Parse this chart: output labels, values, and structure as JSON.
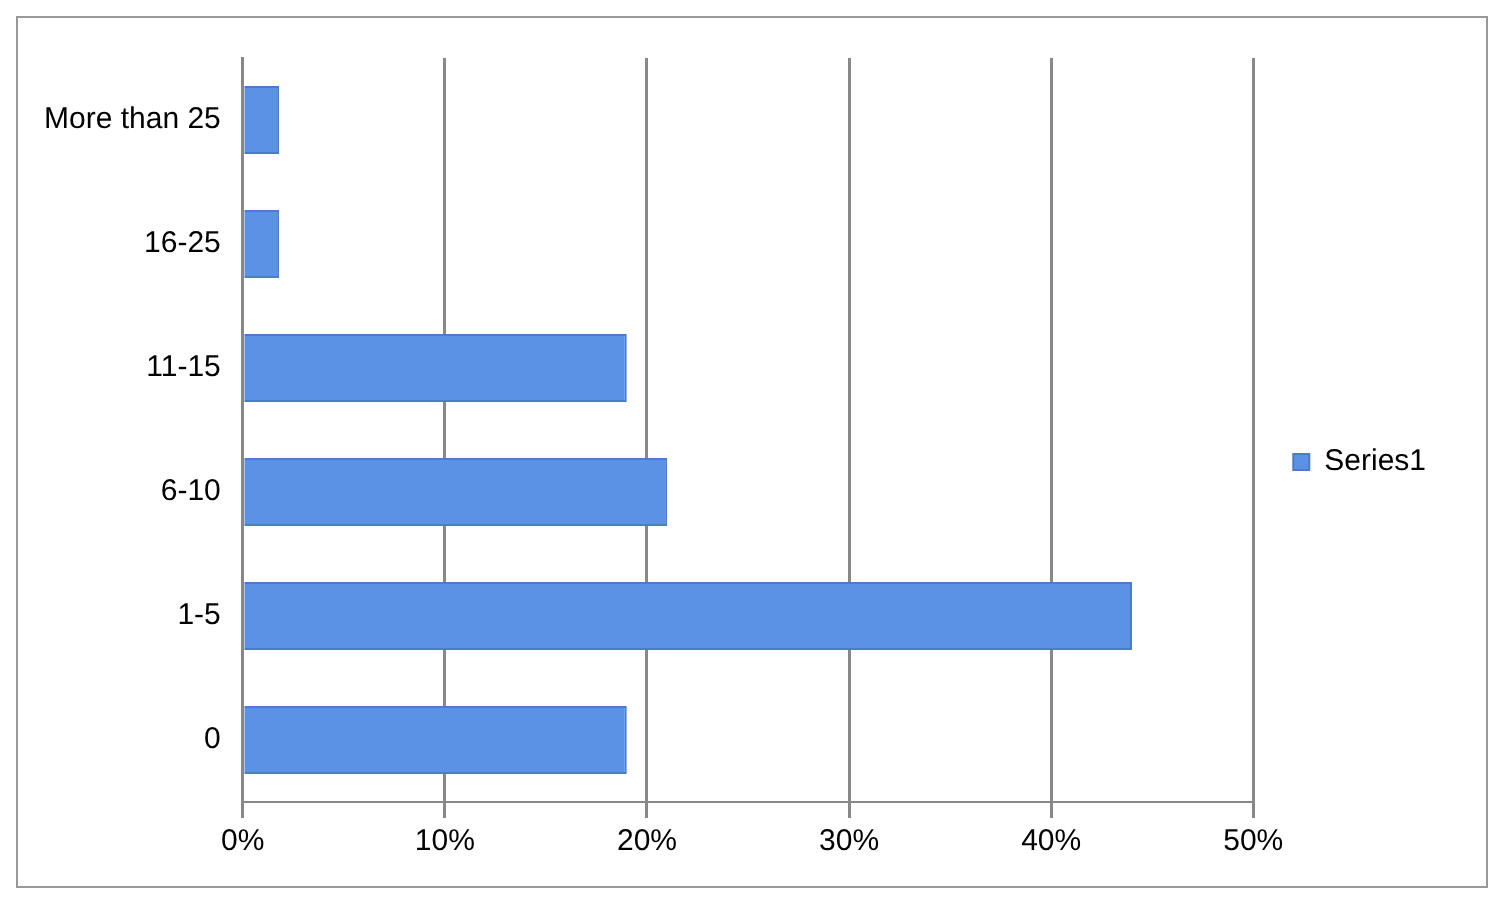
{
  "chart_data": {
    "type": "bar",
    "orientation": "horizontal",
    "categories": [
      "More than 25",
      "16-25",
      "11-15",
      "6-10",
      "1-5",
      "0"
    ],
    "series": [
      {
        "name": "Series1",
        "color": "#5b92e5",
        "values": [
          1.8,
          1.8,
          19,
          21,
          44,
          19
        ]
      }
    ],
    "xlim": [
      0,
      50
    ],
    "xticks": [
      {
        "value": 0,
        "label": "0%"
      },
      {
        "value": 10,
        "label": "10%"
      },
      {
        "value": 20,
        "label": "20%"
      },
      {
        "value": 30,
        "label": "30%"
      },
      {
        "value": 40,
        "label": "40%"
      },
      {
        "value": 50,
        "label": "50%"
      }
    ],
    "grid": "x",
    "legend": "right"
  }
}
